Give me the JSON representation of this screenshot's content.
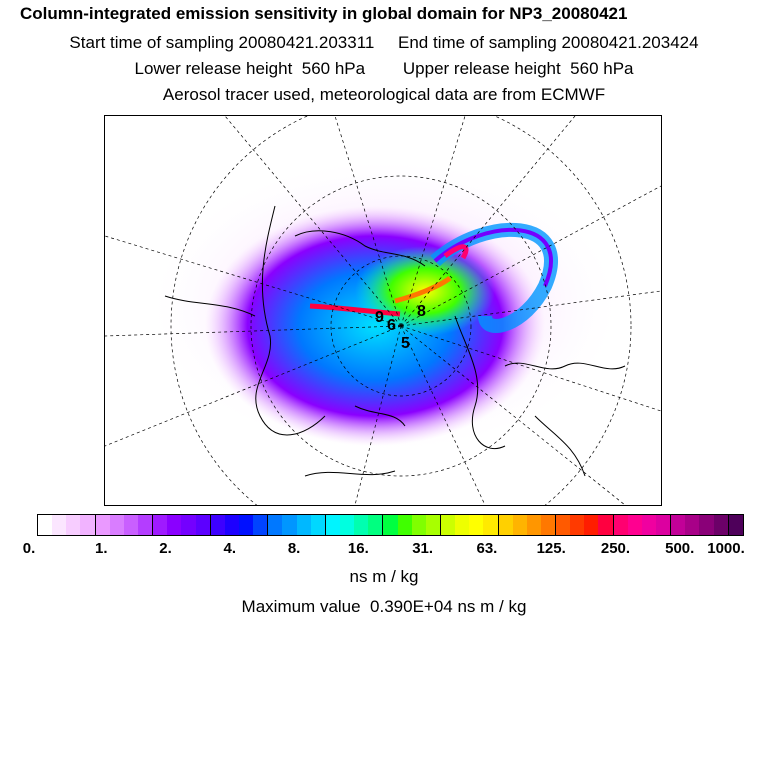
{
  "header": {
    "title": "Column-integrated emission sensitivity in global domain for NP3_20080421",
    "start_label": "Start time of sampling 20080421.203311",
    "end_label": "End time of sampling 20080421.203424",
    "lower_label": "Lower release height  560 hPa",
    "upper_label": "Upper release height  560 hPa",
    "aerosol_line": "Aerosol tracer used, meteorological data are from ECMWF"
  },
  "map": {
    "projection": "polar-stereographic-north",
    "overlay_digits": [
      "9",
      "6",
      "8",
      "5"
    ]
  },
  "colorbar": {
    "tick_labels": [
      "0.",
      "1.",
      "2.",
      "4.",
      "8.",
      "16.",
      "31.",
      "63.",
      "125.",
      "250.",
      "500.",
      "1000."
    ],
    "colors": [
      "#ffffff",
      "#fbe6ff",
      "#f7cdff",
      "#f1b3ff",
      "#ea99ff",
      "#d97dff",
      "#c95fff",
      "#b43dff",
      "#9f1aff",
      "#8a00ff",
      "#7400ff",
      "#5c00ff",
      "#3d00ff",
      "#1d00ff",
      "#0010ff",
      "#0044ff",
      "#0078ff",
      "#0096ff",
      "#00b8ff",
      "#00d8ff",
      "#00f4ff",
      "#00ffe0",
      "#00ffb0",
      "#00ff80",
      "#00ff40",
      "#40ff00",
      "#80ff00",
      "#a8ff00",
      "#ccff00",
      "#eeff00",
      "#ffff00",
      "#ffea00",
      "#ffd000",
      "#ffb400",
      "#ff9600",
      "#ff7800",
      "#ff5a00",
      "#ff3a00",
      "#ff1d00",
      "#ff0040",
      "#ff0070",
      "#ff0090",
      "#f000a0",
      "#dc00a0",
      "#c20098",
      "#a80088",
      "#8a0078",
      "#6c0068",
      "#4e005a"
    ]
  },
  "footer": {
    "unit_label": "ns m / kg",
    "max_value_label": "Maximum value  0.390E+04 ns m / kg"
  }
}
